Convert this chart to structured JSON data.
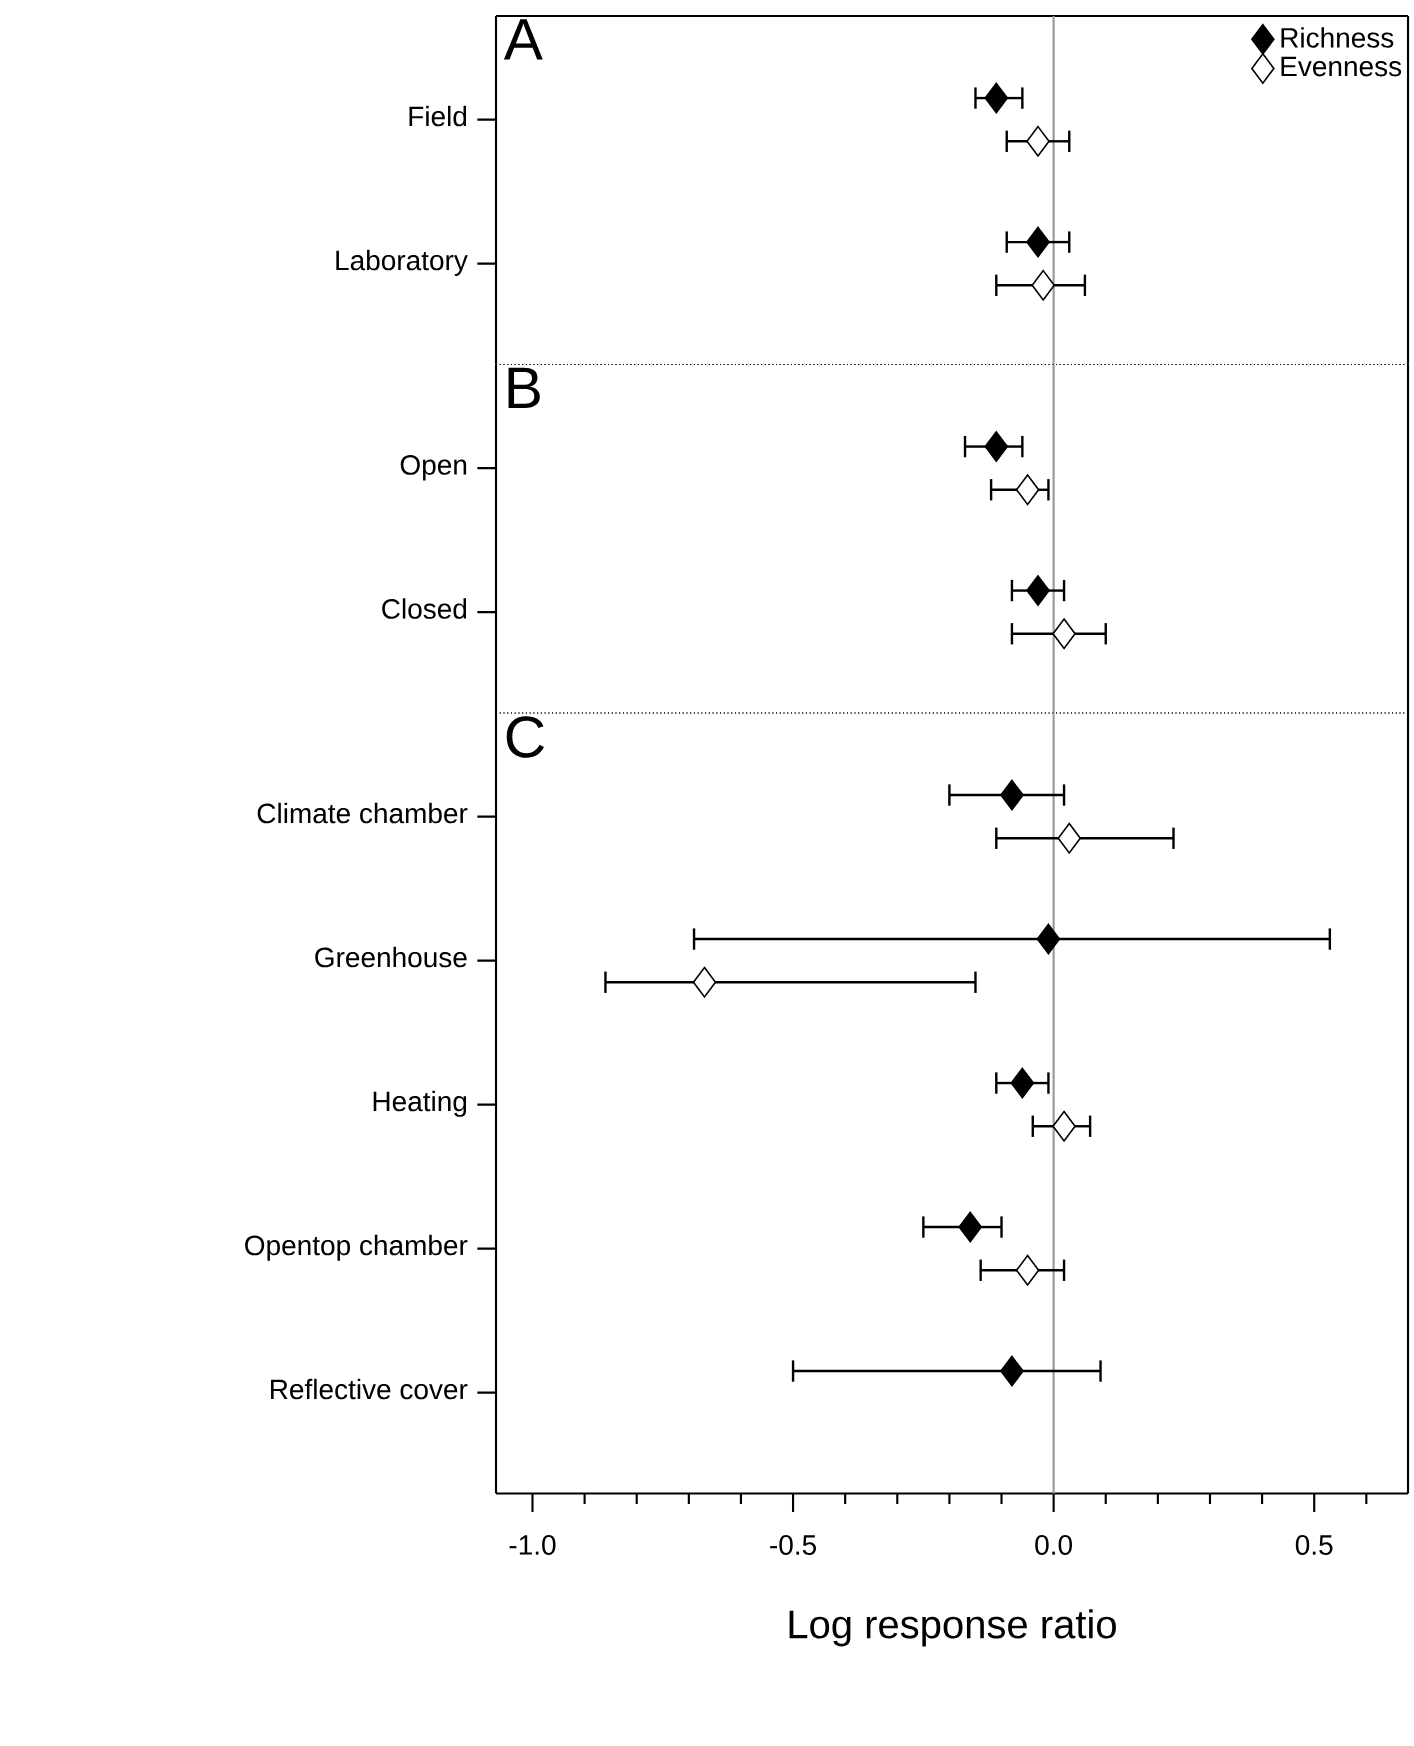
{
  "chart_data": [
    {
      "type": "scatter",
      "orientation": "horizontal",
      "categories": [
        "Field",
        "Laboratory"
      ],
      "marker": "diamond",
      "legend": "top right",
      "tick_labels": "y",
      "xlim": [
        -1.07,
        0.68
      ],
      "annotations": [
        "A"
      ],
      "ref_lines": [
        {
          "axis": "x",
          "value": 0,
          "color": "#999999"
        }
      ],
      "series": [
        {
          "name": "Richness",
          "color": "#000000",
          "values": [
            -0.11,
            -0.03
          ],
          "errors": [
            [
              -0.15,
              -0.06
            ],
            [
              -0.09,
              0.03
            ]
          ]
        },
        {
          "name": "Evenness",
          "color": "#ffffff",
          "values": [
            -0.03,
            -0.02
          ],
          "errors": [
            [
              -0.09,
              0.03
            ],
            [
              -0.11,
              0.06
            ]
          ]
        }
      ]
    },
    {
      "type": "scatter",
      "orientation": "horizontal",
      "categories": [
        "Open",
        "Closed"
      ],
      "marker": "diamond",
      "tick_labels": "y",
      "xlim": [
        -1.07,
        0.68
      ],
      "annotations": [
        "B"
      ],
      "ref_lines": [
        {
          "axis": "x",
          "value": 0,
          "color": "#999999"
        }
      ],
      "series": [
        {
          "color": "#000000",
          "values": [
            -0.11,
            -0.03
          ],
          "errors": [
            [
              -0.17,
              -0.06
            ],
            [
              -0.08,
              0.02
            ]
          ]
        },
        {
          "color": "#ffffff",
          "values": [
            -0.05,
            0.02
          ],
          "errors": [
            [
              -0.12,
              -0.01
            ],
            [
              -0.08,
              0.1
            ]
          ]
        }
      ]
    },
    {
      "type": "scatter",
      "orientation": "horizontal",
      "categories": [
        "Climate chamber",
        "Greenhouse",
        "Heating",
        "Opentop chamber",
        "Reflective cover"
      ],
      "marker": "diamond",
      "xlim": [
        -1.07,
        0.68
      ],
      "xlabel": "Log response ratio",
      "annotations": [
        "C"
      ],
      "xticks": [
        {
          "value": -1.0,
          "label": "-1.0"
        },
        {
          "value": -0.9,
          "label": null
        },
        {
          "value": -0.8,
          "label": null
        },
        {
          "value": -0.7,
          "label": null
        },
        {
          "value": -0.6,
          "label": null
        },
        -0.5,
        {
          "value": -0.4,
          "label": null
        },
        {
          "value": -0.3,
          "label": null
        },
        {
          "value": -0.2,
          "label": null
        },
        {
          "value": -0.1,
          "label": null
        },
        {
          "value": 0,
          "label": "0.0"
        },
        {
          "value": 0.1,
          "label": null
        },
        {
          "value": 0.2,
          "label": null
        },
        {
          "value": 0.3,
          "label": null
        },
        {
          "value": 0.4,
          "label": null
        },
        0.5,
        {
          "value": 0.6,
          "label": null
        }
      ],
      "ref_lines": [
        {
          "axis": "x",
          "value": 0,
          "color": "#999999"
        }
      ],
      "series": [
        {
          "color": "#000000",
          "values": [
            -0.08,
            -0.01,
            -0.06,
            -0.16,
            -0.08
          ],
          "errors": [
            [
              -0.2,
              0.02
            ],
            [
              -0.69,
              0.53
            ],
            [
              -0.11,
              -0.01
            ],
            [
              -0.25,
              -0.1
            ],
            [
              -0.5,
              0.09
            ]
          ]
        },
        {
          "color": "#ffffff",
          "values": [
            0.03,
            -0.67,
            0.02,
            -0.05,
            null
          ],
          "errors": [
            [
              -0.11,
              0.23
            ],
            [
              -0.86,
              -0.15
            ],
            [
              -0.04,
              0.07
            ],
            [
              -0.14,
              0.02
            ],
            null
          ]
        }
      ]
    }
  ]
}
